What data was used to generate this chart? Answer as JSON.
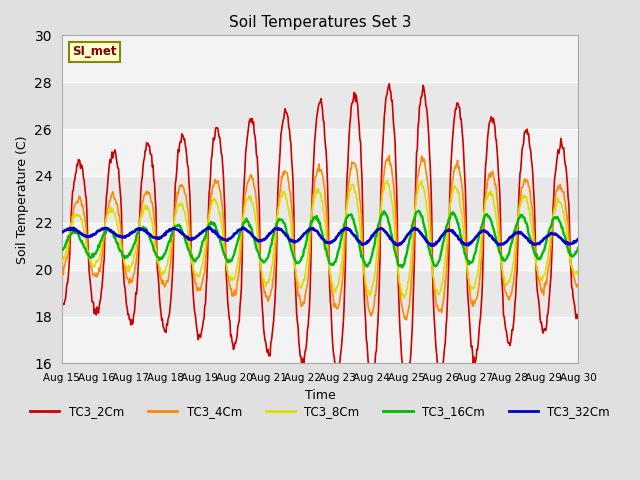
{
  "title": "Soil Temperatures Set 3",
  "xlabel": "Time",
  "ylabel": "Soil Temperature (C)",
  "xlim": [
    0,
    15
  ],
  "ylim": [
    16,
    30
  ],
  "yticks": [
    16,
    18,
    20,
    22,
    24,
    26,
    28,
    30
  ],
  "xtick_labels": [
    "Aug 15",
    "Aug 16",
    "Aug 17",
    "Aug 18",
    "Aug 19",
    "Aug 20",
    "Aug 21",
    "Aug 22",
    "Aug 23",
    "Aug 24",
    "Aug 25",
    "Aug 26",
    "Aug 27",
    "Aug 28",
    "Aug 29",
    "Aug 30"
  ],
  "fig_bg": "#e0e0e0",
  "plot_bg": "#e8e8e8",
  "grid_color": "#ffffff",
  "series_colors": {
    "TC3_2Cm": "#cc0000",
    "TC3_4Cm": "#ff8800",
    "TC3_8Cm": "#dddd00",
    "TC3_16Cm": "#00bb00",
    "TC3_32Cm": "#0000cc"
  },
  "annotation_text": "SI_met",
  "annotation_color": "#880000",
  "annotation_bg": "#ffffcc",
  "annotation_edge": "#888800"
}
